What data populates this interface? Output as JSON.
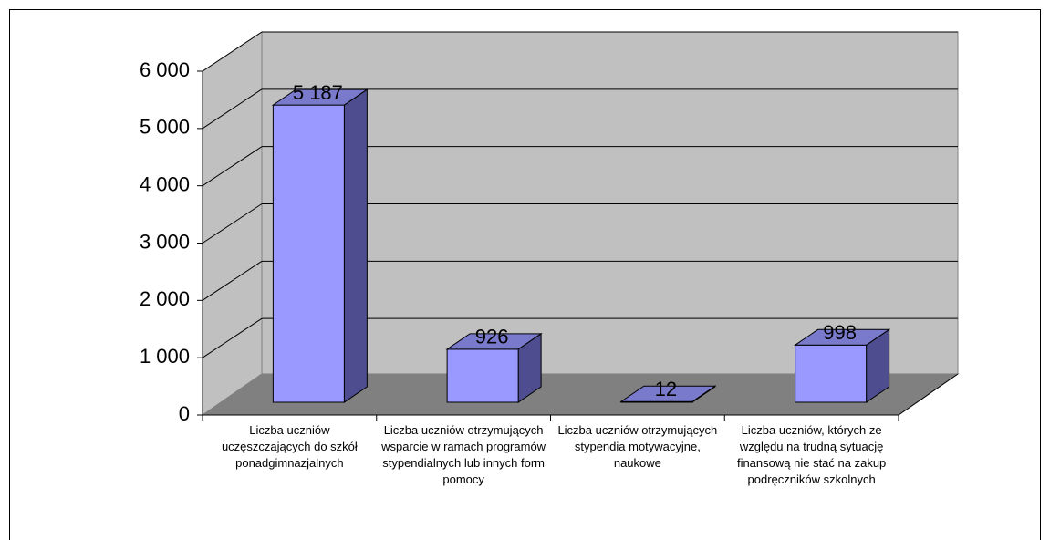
{
  "chart_data": {
    "type": "bar3d",
    "categories": [
      "Liczba uczniów uczęszczających do szkół ponadgimnazjalnych",
      "Liczba uczniów otrzymujących wsparcie w ramach programów stypendialnych lub innych form pomocy",
      "Liczba uczniów otrzymujących stypendia motywacyjne, naukowe",
      "Liczba uczniów, których ze względu na trudną sytuację finansową nie stać na zakup podręczników szkolnych"
    ],
    "values": [
      5187,
      926,
      12,
      998
    ],
    "value_labels": [
      "5 187",
      "926",
      "12",
      "998"
    ],
    "color": "#9999ff",
    "ylim": [
      0,
      6000
    ],
    "yticks": [
      0,
      {
        "value": 1000,
        "label": "1 000"
      },
      {
        "value": 2000,
        "label": "2 000"
      },
      {
        "value": 3000,
        "label": "3 000"
      },
      {
        "value": 4000,
        "label": "4 000"
      },
      {
        "value": 5000,
        "label": "5 000"
      },
      {
        "value": 6000,
        "label": "6 000"
      }
    ],
    "grid": true
  }
}
